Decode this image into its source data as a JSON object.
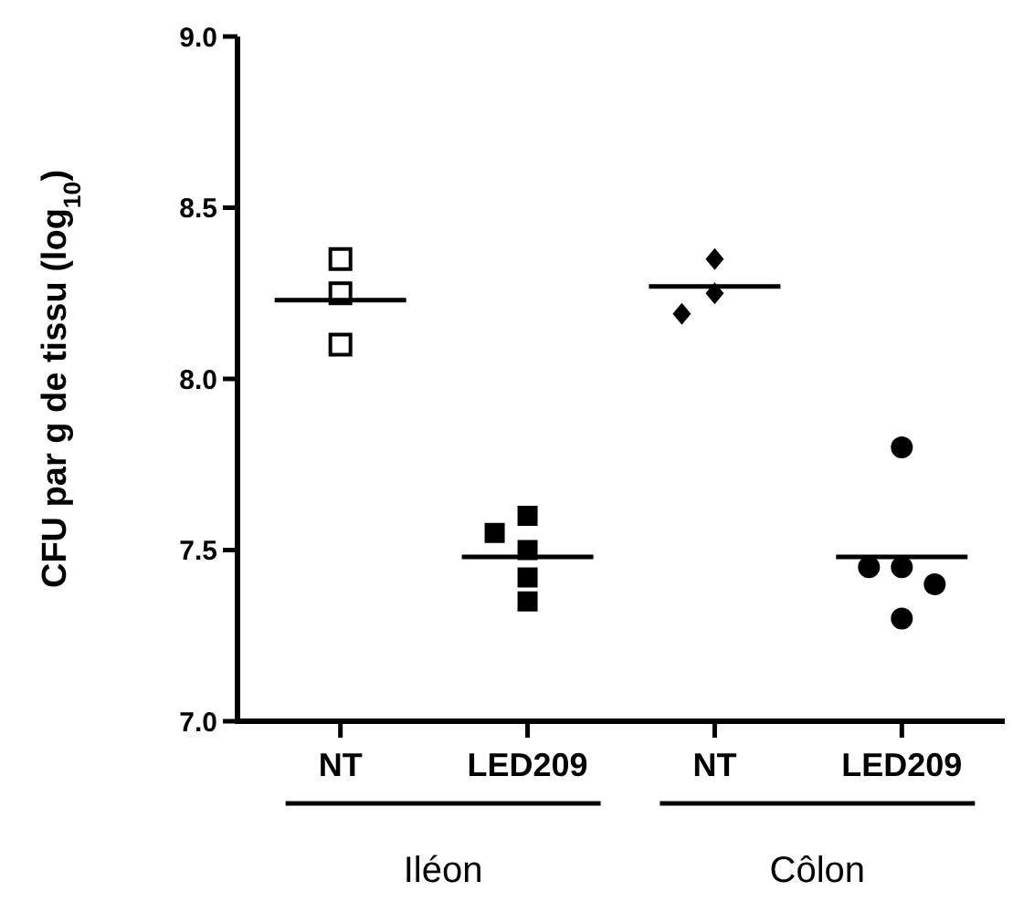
{
  "chart_data": {
    "type": "scatter",
    "ylabel": "CFU par g de tissu (log$_{10}$)",
    "categories": [
      "NT",
      "LED209",
      "NT",
      "LED209"
    ],
    "ylim": [
      7.0,
      9.0
    ],
    "yticks": [
      {
        "value": 7.0,
        "label": "7.0"
      },
      {
        "value": 7.5,
        "label": "7.5"
      },
      {
        "value": 8.0,
        "label": "8.0"
      },
      {
        "value": 8.5,
        "label": "8.5"
      },
      {
        "value": 9.0,
        "label": "9.0"
      }
    ],
    "annotations": [
      "Iléon",
      "Côlon"
    ],
    "series": [
      {
        "color": "#000000",
        "marker": "square-open",
        "values": [
          8.35,
          null,
          null,
          null
        ]
      },
      {
        "color": "#000000",
        "marker": "square-open",
        "values": [
          8.25,
          null,
          null,
          null
        ]
      },
      {
        "color": "#000000",
        "marker": "square-open",
        "values": [
          8.1,
          null,
          null,
          null
        ]
      },
      {
        "color": "#000000",
        "marker": "square",
        "values": [
          null,
          7.6,
          null,
          null
        ]
      },
      {
        "color": "#000000",
        "marker": "square",
        "values": [
          null,
          7.55,
          null,
          null
        ]
      },
      {
        "color": "#000000",
        "marker": "square",
        "values": [
          null,
          7.5,
          null,
          null
        ]
      },
      {
        "color": "#000000",
        "marker": "square",
        "values": [
          null,
          7.42,
          null,
          null
        ]
      },
      {
        "color": "#000000",
        "marker": "square",
        "values": [
          null,
          7.35,
          null,
          null
        ]
      },
      {
        "color": "#000000",
        "marker": "diamond",
        "values": [
          null,
          null,
          8.35,
          null
        ]
      },
      {
        "color": "#000000",
        "marker": "diamond",
        "values": [
          null,
          null,
          8.25,
          null
        ]
      },
      {
        "color": "#000000",
        "marker": "diamond",
        "values": [
          null,
          null,
          8.19,
          null
        ]
      },
      {
        "color": "#000000",
        "marker": "circle",
        "values": [
          null,
          null,
          null,
          7.8
        ]
      },
      {
        "color": "#000000",
        "marker": "circle",
        "values": [
          null,
          null,
          null,
          7.45
        ]
      },
      {
        "color": "#000000",
        "marker": "circle",
        "values": [
          null,
          null,
          null,
          7.45
        ]
      },
      {
        "color": "#000000",
        "marker": "circle",
        "values": [
          null,
          null,
          null,
          7.4
        ]
      },
      {
        "color": "#000000",
        "marker": "circle",
        "values": [
          null,
          null,
          null,
          7.3
        ]
      },
      {
        "type": "box",
        "color": "#000000",
        "boxes": [
          {
            "low": 8.23,
            "q1": 8.23,
            "median": 8.23,
            "q3": 8.23,
            "high": 8.23
          },
          {
            "low": 7.48,
            "q1": 7.48,
            "median": 7.48,
            "q3": 7.48,
            "high": 7.48
          },
          {
            "low": 8.27,
            "q1": 8.27,
            "median": 8.27,
            "q3": 8.27,
            "high": 8.27
          },
          {
            "low": 7.48,
            "q1": 7.48,
            "median": 7.48,
            "q3": 7.48,
            "high": 7.48
          }
        ]
      }
    ]
  }
}
